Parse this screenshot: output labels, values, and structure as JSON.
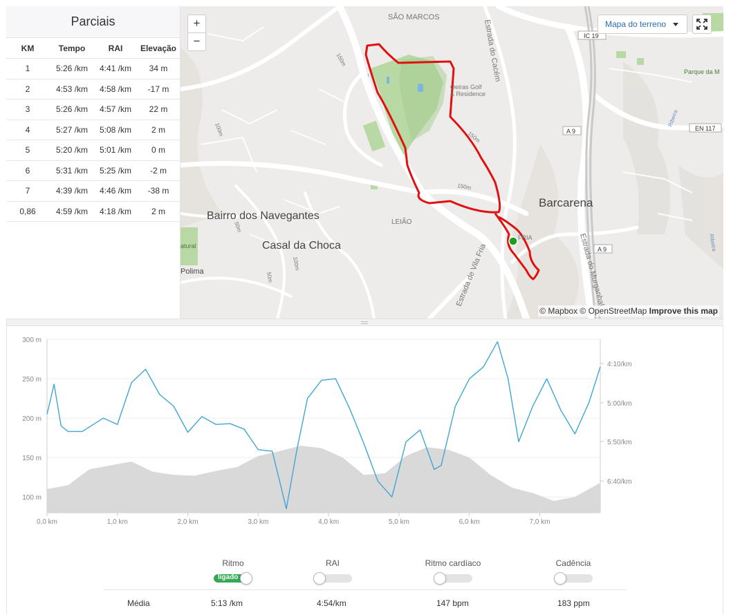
{
  "splits": {
    "title": "Parciais",
    "headers": [
      "KM",
      "Tempo",
      "RAI",
      "Elevação"
    ],
    "rows": [
      [
        "1",
        "5:26 /km",
        "4:41 /km",
        "34 m"
      ],
      [
        "2",
        "4:53 /km",
        "4:58 /km",
        "-17 m"
      ],
      [
        "3",
        "5:26 /km",
        "4:57 /km",
        "22 m"
      ],
      [
        "4",
        "5:27 /km",
        "5:08 /km",
        "2 m"
      ],
      [
        "5",
        "5:20 /km",
        "5:01 /km",
        "0 m"
      ],
      [
        "6",
        "5:31 /km",
        "5:25 /km",
        "-2 m"
      ],
      [
        "7",
        "4:39 /km",
        "4:46 /km",
        "-38 m"
      ],
      [
        "0,86",
        "4:59 /km",
        "4:18 /km",
        "2 m"
      ]
    ]
  },
  "map": {
    "zoom_in": "+",
    "zoom_out": "−",
    "terrain_button": "Mapa do terreno",
    "attribution_prefix": "© Mapbox © OpenStreetMap ",
    "attribution_link": "Improve this map",
    "labels": {
      "sao_marcos": "SÃO MARCOS",
      "estrada_cacem": "Estrada do Cacém",
      "golf": "Oeiras Golf",
      "golf2": "& Residence",
      "barcarena": "Barcarena",
      "navegantes": "Bairro dos Navegantes",
      "chanca": "Casal da Choca",
      "leiao": "LEIÃO",
      "vila_fria": "Estrada de Vila Fria",
      "fria": "FRIA",
      "murganhal": "Estrada do Murganhal",
      "polima": "Polima",
      "natural": "atural",
      "parque": "Parque da M",
      "ic19": "IC 19",
      "a9": "A 9",
      "a9b": "A 9",
      "en117": "EN 117",
      "c150a": "150m",
      "c150b": "150m",
      "c150c": "150m",
      "c100": "100m",
      "c50": "50m",
      "c50b": "50m",
      "c100b": "100m",
      "ribeira": "Ribeira",
      "ribeira2": "Ribeira"
    },
    "colors": {
      "route": "#e01010",
      "start": "#1f9d1f",
      "park": "#a8cf94"
    }
  },
  "chart": {
    "left_ticks": [
      "300 m",
      "250 m",
      "200 m",
      "150 m",
      "100 m"
    ],
    "right_ticks": [
      "4:10/km",
      "5:00/km",
      "5:50/km",
      "6:40/km"
    ],
    "x_ticks": [
      "0,0 km",
      "1,0 km",
      "2,0 km",
      "3,0 km",
      "4,0 km",
      "5,0 km",
      "6,0 km",
      "7,0 km"
    ]
  },
  "chart_data": {
    "type": "line",
    "xlabel": "",
    "ylabel": "",
    "xlim": [
      0,
      7.86
    ],
    "ylim_elevation": [
      80,
      300
    ],
    "series": [
      {
        "kind": "area",
        "x": [
          0,
          0.3,
          0.6,
          0.9,
          1.2,
          1.5,
          1.8,
          2.1,
          2.4,
          2.7,
          3.0,
          3.3,
          3.6,
          3.9,
          4.2,
          4.5,
          4.8,
          5.1,
          5.4,
          5.7,
          6.0,
          6.3,
          6.6,
          6.9,
          7.2,
          7.5,
          7.86
        ],
        "values": [
          110,
          115,
          135,
          140,
          145,
          132,
          128,
          127,
          133,
          138,
          152,
          158,
          165,
          162,
          150,
          128,
          130,
          152,
          163,
          160,
          150,
          128,
          112,
          105,
          95,
          100,
          118
        ]
      },
      {
        "kind": "line",
        "color": "#3fa6d6",
        "x": [
          0,
          0.1,
          0.2,
          0.3,
          0.5,
          0.8,
          1.0,
          1.2,
          1.4,
          1.6,
          1.8,
          2.0,
          2.2,
          2.4,
          2.6,
          2.8,
          3.0,
          3.2,
          3.4,
          3.55,
          3.7,
          3.9,
          4.1,
          4.3,
          4.5,
          4.7,
          4.9,
          5.1,
          5.3,
          5.5,
          5.6,
          5.8,
          6.0,
          6.2,
          6.4,
          6.55,
          6.7,
          6.9,
          7.1,
          7.3,
          7.5,
          7.7,
          7.86
        ],
        "values": [
          205,
          243,
          190,
          183,
          183,
          200,
          192,
          245,
          262,
          230,
          215,
          182,
          202,
          192,
          193,
          186,
          160,
          158,
          85,
          160,
          225,
          248,
          250,
          212,
          168,
          120,
          100,
          170,
          185,
          135,
          140,
          215,
          250,
          265,
          297,
          250,
          170,
          215,
          250,
          210,
          180,
          220,
          265
        ]
      }
    ]
  },
  "toggles": {
    "items": [
      {
        "label": "Ritmo",
        "state": "ligado"
      },
      {
        "label": "RAI",
        "state": ""
      },
      {
        "label": "Ritmo cardíaco",
        "state": ""
      },
      {
        "label": "Cadência",
        "state": ""
      }
    ],
    "avg_label": "Média",
    "avg_values": [
      "5:13 /km",
      "4:54/km",
      "147 bpm",
      "183 ppm"
    ]
  }
}
